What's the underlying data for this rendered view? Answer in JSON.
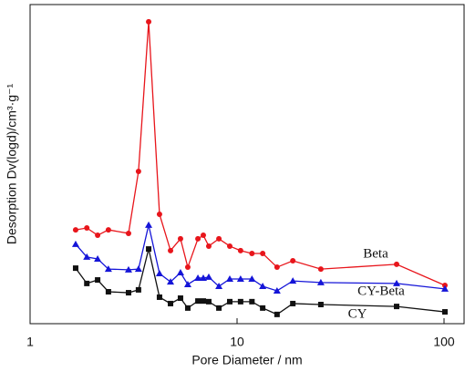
{
  "chart_data": {
    "type": "line",
    "x_label": "Pore Diameter / nm",
    "y_label": "Desorption Dv(logd)/cm³·g⁻¹",
    "x_scale": "log",
    "xlim": [
      1,
      125
    ],
    "xticks": [
      1,
      10,
      100
    ],
    "ylim": [
      0,
      100
    ],
    "x": [
      1.66,
      1.88,
      2.12,
      2.39,
      2.99,
      3.34,
      3.74,
      4.22,
      4.77,
      5.33,
      5.78,
      6.47,
      6.87,
      7.3,
      8.17,
      9.22,
      10.4,
      11.8,
      13.3,
      15.6,
      18.6,
      25.4,
      59.0,
      101
    ],
    "series": [
      {
        "name": "Beta",
        "color": "#e8151b",
        "marker": "circle",
        "values": [
          29.4,
          30,
          27.7,
          29.4,
          28.3,
          47.7,
          94.6,
          34.3,
          22.9,
          26.6,
          17.7,
          26.6,
          27.7,
          24.3,
          26.6,
          24.3,
          22.9,
          22,
          22,
          17.7,
          19.7,
          17.1,
          18.6,
          12
        ]
      },
      {
        "name": "CY-Beta",
        "color": "#1515d8",
        "marker": "triangle",
        "values": [
          24.9,
          20.9,
          20.3,
          17.1,
          16.9,
          17.1,
          30.9,
          15.7,
          13.1,
          16,
          12.3,
          14.3,
          14.3,
          14.6,
          11.7,
          14,
          14,
          14,
          11.7,
          10.3,
          13.4,
          12.9,
          12.6,
          10.9
        ]
      },
      {
        "name": "CY",
        "color": "#111111",
        "marker": "square",
        "values": [
          17.4,
          12.6,
          13.7,
          10,
          9.7,
          10.6,
          23.4,
          8.3,
          6.3,
          8,
          4.9,
          7.1,
          7.1,
          6.9,
          4.9,
          6.9,
          6.9,
          6.9,
          4.9,
          2.9,
          6.3,
          6,
          5.4,
          3.7
        ]
      }
    ]
  }
}
